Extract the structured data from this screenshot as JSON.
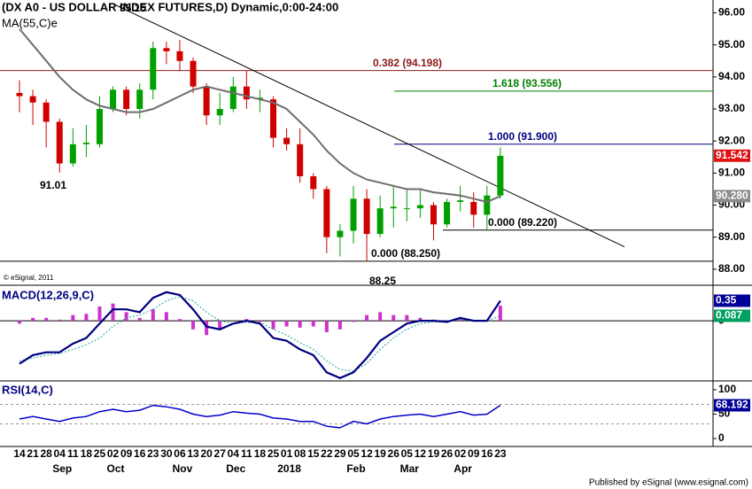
{
  "chart_data": [
    {
      "type": "candlestick",
      "title": "(DX A0 - US DOLLAR INDEX FUTURES,D) Dynamic,0:00-24:00",
      "categories": [
        "14",
        "21",
        "28",
        "04",
        "11",
        "18",
        "25",
        "02",
        "09",
        "16",
        "23",
        "30",
        "06",
        "13",
        "20",
        "27",
        "04",
        "11",
        "18",
        "25",
        "01",
        "08",
        "15",
        "22",
        "29",
        "05",
        "12",
        "19",
        "26",
        "05",
        "12",
        "19",
        "26",
        "02",
        "09",
        "16",
        "23"
      ],
      "months": [
        "Sep",
        "Oct",
        "Nov",
        "Dec",
        "2018",
        "Feb",
        "Mar",
        "Apr"
      ],
      "open": [
        93.5,
        93.4,
        93.2,
        92.6,
        91.3,
        91.9,
        91.9,
        93.0,
        93.6,
        93.0,
        93.6,
        94.9,
        94.8,
        94.5,
        93.7,
        92.8,
        93.0,
        93.7,
        93.3,
        93.3,
        92.1,
        91.9,
        90.9,
        90.5,
        89.0,
        89.2,
        90.2,
        89.1,
        89.9,
        89.9,
        89.9,
        90.0,
        89.4,
        90.1,
        90.1,
        89.7,
        90.3
      ],
      "high": [
        93.9,
        93.6,
        93.3,
        92.7,
        92.4,
        92.5,
        93.4,
        93.7,
        93.7,
        93.8,
        95.1,
        95.1,
        95.15,
        94.6,
        93.8,
        93.5,
        94.0,
        94.2,
        93.6,
        93.4,
        92.4,
        92.4,
        91.0,
        90.6,
        89.4,
        90.6,
        90.5,
        90.3,
        90.6,
        90.5,
        90.5,
        90.1,
        90.2,
        90.6,
        90.4,
        90.6,
        91.8
      ],
      "low": [
        92.9,
        92.5,
        91.8,
        91.01,
        91.2,
        91.5,
        91.8,
        92.9,
        92.8,
        92.7,
        93.3,
        94.4,
        94.2,
        93.5,
        92.5,
        92.5,
        92.9,
        93.0,
        92.9,
        91.8,
        91.7,
        90.7,
        90.2,
        88.5,
        88.4,
        88.8,
        88.25,
        89.0,
        89.3,
        89.5,
        89.6,
        88.9,
        89.3,
        89.8,
        89.3,
        89.22,
        90.2
      ],
      "close": [
        93.4,
        93.2,
        92.6,
        91.3,
        91.9,
        91.95,
        93.0,
        93.6,
        93.0,
        93.6,
        94.9,
        94.8,
        94.5,
        93.7,
        92.8,
        93.0,
        93.7,
        93.3,
        93.35,
        92.1,
        91.9,
        90.9,
        90.5,
        89.0,
        89.2,
        90.2,
        89.1,
        89.9,
        89.95,
        89.9,
        90.0,
        89.4,
        90.1,
        90.15,
        89.7,
        90.3,
        91.54
      ],
      "up_color": "#00a000",
      "down_color": "#d00000",
      "series": [
        {
          "name": "MA(55,C)e",
          "color": "#6e6e6e",
          "values": [
            95.5,
            95.0,
            94.5,
            94.0,
            93.6,
            93.3,
            93.1,
            93.0,
            92.9,
            92.9,
            93.0,
            93.2,
            93.4,
            93.6,
            93.7,
            93.6,
            93.5,
            93.4,
            93.3,
            93.2,
            93.0,
            92.6,
            92.2,
            91.7,
            91.3,
            91.0,
            90.8,
            90.7,
            90.6,
            90.5,
            90.5,
            90.4,
            90.35,
            90.3,
            90.2,
            90.1,
            90.28
          ]
        }
      ],
      "ylim": [
        87.5,
        96.4
      ],
      "yticks": [
        {
          "value": 96,
          "label": "96.00"
        },
        {
          "value": 95,
          "label": "95.00"
        },
        {
          "value": 94,
          "label": "94.00"
        },
        {
          "value": 93,
          "label": "93.00"
        },
        {
          "value": 92,
          "label": "92.00"
        },
        {
          "value": 91,
          "label": "91.00"
        },
        {
          "value": 90,
          "label": "90.00"
        },
        {
          "value": 89,
          "label": "89.00"
        },
        {
          "value": 88,
          "label": "88.00"
        }
      ],
      "levels": [
        {
          "value": 94.198,
          "label": "0.382 (94.198)",
          "color": "#8b1a1a"
        },
        {
          "value": 93.556,
          "label": "1.618 (93.556)",
          "color": "#008000"
        },
        {
          "value": 91.9,
          "label": "1.000 (91.900)",
          "color": "#000080"
        },
        {
          "value": 89.22,
          "label": "0.000 (89.220)",
          "color": "#000000"
        },
        {
          "value": 88.25,
          "label": "0.000 (88.250)",
          "color": "#000000"
        }
      ],
      "trendline": [
        96.25,
        88.7
      ],
      "annotations": [
        95.15,
        91.01,
        88.25
      ],
      "last_values": [
        {
          "value": 91.542,
          "label": "91.542",
          "color": "#e01010"
        },
        {
          "value": 90.28,
          "label": "90.280",
          "color": "#8c8c8c"
        }
      ],
      "watermark": "© eSignal, 2011"
    },
    {
      "type": "macd",
      "title": "MACD(12,26,9,C)",
      "series": [
        {
          "color": "#000080",
          "values": [
            -0.75,
            -0.6,
            -0.55,
            -0.55,
            -0.4,
            -0.3,
            -0.05,
            0.2,
            0.2,
            0.15,
            0.4,
            0.5,
            0.45,
            0.2,
            -0.1,
            -0.15,
            -0.05,
            0.0,
            -0.05,
            -0.3,
            -0.35,
            -0.5,
            -0.6,
            -0.9,
            -1.0,
            -0.9,
            -0.65,
            -0.35,
            -0.2,
            -0.05,
            0.0,
            0.0,
            -0.02,
            0.05,
            0.0,
            0.0,
            0.35
          ]
        },
        {
          "color": "#20a0a0",
          "values": [
            -0.7,
            -0.65,
            -0.6,
            -0.57,
            -0.5,
            -0.42,
            -0.3,
            -0.1,
            0.05,
            0.1,
            0.2,
            0.35,
            0.42,
            0.35,
            0.15,
            0.0,
            -0.05,
            -0.03,
            -0.03,
            -0.15,
            -0.25,
            -0.38,
            -0.5,
            -0.7,
            -0.85,
            -0.88,
            -0.75,
            -0.5,
            -0.3,
            -0.15,
            -0.05,
            -0.02,
            -0.02,
            0.02,
            0.0,
            0.0,
            0.087
          ]
        }
      ],
      "histogram": {
        "color": "#cc33cc",
        "values": [
          -0.05,
          0.05,
          0.05,
          0.02,
          0.1,
          0.12,
          0.25,
          0.3,
          0.15,
          0.05,
          0.2,
          0.15,
          0.03,
          -0.15,
          -0.25,
          -0.15,
          0.0,
          0.03,
          -0.02,
          -0.15,
          -0.1,
          -0.12,
          -0.1,
          -0.2,
          -0.15,
          -0.02,
          0.1,
          0.15,
          0.1,
          0.1,
          0.05,
          0.02,
          0.0,
          0.03,
          0.0,
          0.0,
          0.263
        ]
      },
      "ylim": [
        -1.05,
        0.62
      ],
      "yticks": [
        0
      ],
      "last_values": [
        {
          "value": 0.35,
          "label": "0.35",
          "color": "#000099"
        },
        {
          "value": 0.087,
          "label": "0.087",
          "color": "#00a060"
        }
      ]
    },
    {
      "type": "line",
      "title": "RSI(14,C)",
      "series": [
        {
          "color": "#0000cc",
          "values": [
            40,
            45,
            40,
            35,
            42,
            45,
            55,
            60,
            55,
            58,
            68,
            65,
            60,
            50,
            45,
            48,
            55,
            52,
            50,
            42,
            40,
            35,
            35,
            25,
            22,
            35,
            30,
            40,
            45,
            48,
            50,
            45,
            50,
            55,
            48,
            50,
            68.192
          ]
        }
      ],
      "ylim": [
        -16.4,
        118.2
      ],
      "yticks": [
        100,
        50,
        0
      ],
      "guides": [
        70,
        30
      ],
      "last_values": [
        {
          "value": 68.192,
          "label": "68.192",
          "color": "#000099"
        }
      ]
    }
  ],
  "footer": "Published by eSignal (www.esignal.com)"
}
